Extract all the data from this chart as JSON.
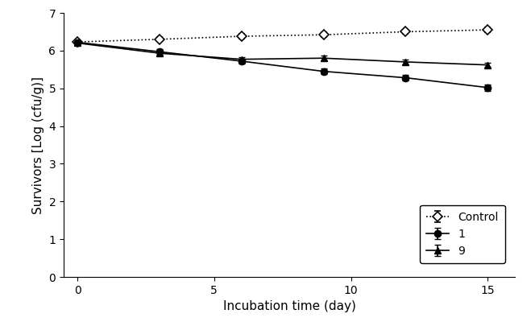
{
  "x": [
    0,
    3,
    6,
    9,
    12,
    15
  ],
  "control_y": [
    6.23,
    6.3,
    6.38,
    6.42,
    6.5,
    6.55
  ],
  "control_err": [
    0.05,
    0.05,
    0.07,
    0.07,
    0.06,
    0.07
  ],
  "series1_y": [
    6.22,
    5.97,
    5.72,
    5.45,
    5.28,
    5.02
  ],
  "series1_err": [
    0.05,
    0.07,
    0.06,
    0.08,
    0.08,
    0.09
  ],
  "series9_y": [
    6.2,
    5.93,
    5.77,
    5.8,
    5.7,
    5.62
  ],
  "series9_err": [
    0.05,
    0.06,
    0.06,
    0.06,
    0.07,
    0.06
  ],
  "xlabel": "Incubation time (day)",
  "ylabel": "Survivors [Log (cfu/g)]",
  "xlim": [
    -0.5,
    16
  ],
  "ylim": [
    0,
    7
  ],
  "yticks": [
    0,
    1,
    2,
    3,
    4,
    5,
    6,
    7
  ],
  "xticks": [
    0,
    5,
    10,
    15
  ],
  "legend_labels": [
    "Control",
    "1",
    "9"
  ],
  "line_color": "#000000",
  "background_color": "#ffffff"
}
